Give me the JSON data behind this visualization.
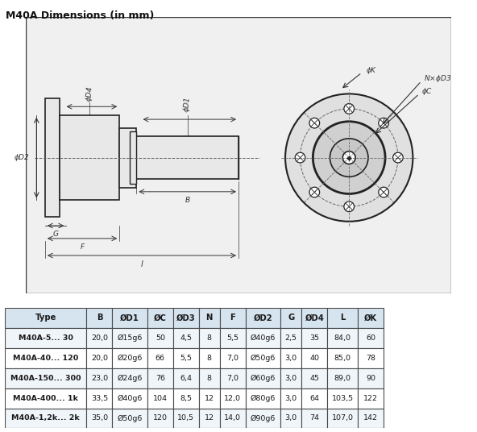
{
  "title": "M40A Dimensions (in mm)",
  "title_fontsize": 9,
  "table_headers": [
    "Type",
    "B",
    "ØD1",
    "ØC",
    "ØD3",
    "N",
    "F",
    "ØD2",
    "G",
    "ØD4",
    "L",
    "ØK"
  ],
  "table_rows": [
    [
      "M40A-5... 30",
      "20,0",
      "Ø15g6",
      "50",
      "4,5",
      "8",
      "5,5",
      "Ø40g6",
      "2,5",
      "35",
      "84,0",
      "60"
    ],
    [
      "M40A-40... 120",
      "20,0",
      "Ø20g6",
      "66",
      "5,5",
      "8",
      "7,0",
      "Ø50g6",
      "3,0",
      "40",
      "85,0",
      "78"
    ],
    [
      "M40A-150... 300",
      "23,0",
      "Ø24g6",
      "76",
      "6,4",
      "8",
      "7,0",
      "Ø60g6",
      "3,0",
      "45",
      "89,0",
      "90"
    ],
    [
      "M40A-400... 1k",
      "33,5",
      "Ø40g6",
      "104",
      "8,5",
      "12",
      "12,0",
      "Ø80g6",
      "3,0",
      "64",
      "103,5",
      "122"
    ],
    [
      "M40A-1,2k... 2k",
      "35,0",
      "Ø50g6",
      "120",
      "10,5",
      "12",
      "14,0",
      "Ø90g6",
      "3,0",
      "74",
      "107,0",
      "142"
    ]
  ],
  "header_bg": "#d6e4f0",
  "row_bg_odd": "#ffffff",
  "row_bg_even": "#ffffff",
  "table_border": "#4a4a4a",
  "drawing_bg": "#f5f5f5",
  "drawing_border": "#333333",
  "line_color": "#222222",
  "dim_color": "#333333",
  "dashed_color": "#666666"
}
